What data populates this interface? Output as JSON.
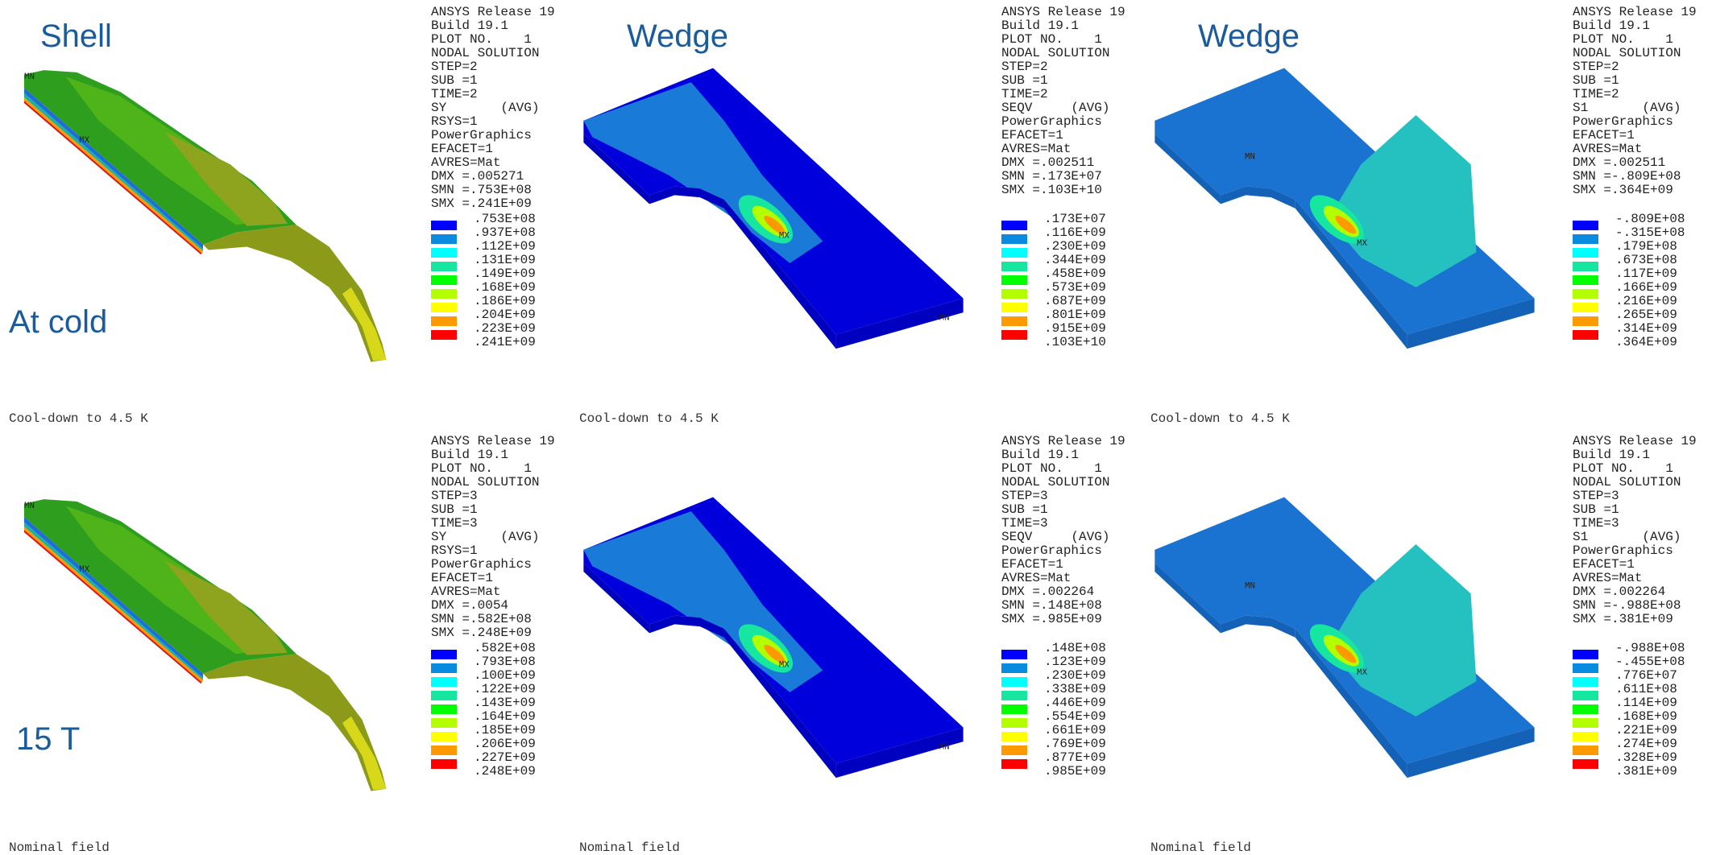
{
  "titles": [
    "Shell",
    "Wedge",
    "Wedge"
  ],
  "row_labels": [
    "At cold",
    "15 T"
  ],
  "panels": [
    {
      "info": [
        "ANSYS Release 19",
        "Build 19.1",
        "PLOT NO.    1",
        "NODAL SOLUTION",
        "STEP=2",
        "SUB =1",
        "TIME=2",
        "SY       (AVG)",
        "RSYS=1",
        "PowerGraphics",
        "EFACET=1",
        "AVRES=Mat",
        "DMX =.005271",
        "SMN =.753E+08",
        "SMX =.241E+09"
      ],
      "legend": [
        ".753E+08",
        ".937E+08",
        ".112E+09",
        ".131E+09",
        ".149E+09",
        ".168E+09",
        ".186E+09",
        ".204E+09",
        ".223E+09",
        ".241E+09"
      ],
      "mn": "MN",
      "mx": "MX",
      "caption": "Cool-down to 4.5 K"
    },
    {
      "info": [
        "ANSYS Release 19",
        "Build 19.1",
        "PLOT NO.    1",
        "NODAL SOLUTION",
        "STEP=2",
        "SUB =1",
        "TIME=2",
        "SEQV     (AVG)",
        "PowerGraphics",
        "EFACET=1",
        "AVRES=Mat",
        "DMX =.002511",
        "SMN =.173E+07",
        "SMX =.103E+10"
      ],
      "legend": [
        ".173E+07",
        ".116E+09",
        ".230E+09",
        ".344E+09",
        ".458E+09",
        ".573E+09",
        ".687E+09",
        ".801E+09",
        ".915E+09",
        ".103E+10"
      ],
      "mn": "MN",
      "mx": "MX",
      "caption": "Cool-down to 4.5 K"
    },
    {
      "info": [
        "ANSYS Release 19",
        "Build 19.1",
        "PLOT NO.    1",
        "NODAL SOLUTION",
        "STEP=2",
        "SUB =1",
        "TIME=2",
        "S1       (AVG)",
        "PowerGraphics",
        "EFACET=1",
        "AVRES=Mat",
        "DMX =.002511",
        "SMN =-.809E+08",
        "SMX =.364E+09"
      ],
      "legend": [
        "-.809E+08",
        "-.315E+08",
        ".179E+08",
        ".673E+08",
        ".117E+09",
        ".166E+09",
        ".216E+09",
        ".265E+09",
        ".314E+09",
        ".364E+09"
      ],
      "mn": "MN",
      "mx": "MX",
      "caption": "Cool-down to 4.5 K"
    },
    {
      "info": [
        "ANSYS Release 19",
        "Build 19.1",
        "PLOT NO.    1",
        "NODAL SOLUTION",
        "STEP=3",
        "SUB =1",
        "TIME=3",
        "SY       (AVG)",
        "RSYS=1",
        "PowerGraphics",
        "EFACET=1",
        "AVRES=Mat",
        "DMX =.0054",
        "SMN =.582E+08",
        "SMX =.248E+09"
      ],
      "legend": [
        ".582E+08",
        ".793E+08",
        ".100E+09",
        ".122E+09",
        ".143E+09",
        ".164E+09",
        ".185E+09",
        ".206E+09",
        ".227E+09",
        ".248E+09"
      ],
      "mn": "MN",
      "mx": "MX",
      "caption": "Nominal field"
    },
    {
      "info": [
        "ANSYS Release 19",
        "Build 19.1",
        "PLOT NO.    1",
        "NODAL SOLUTION",
        "STEP=3",
        "SUB =1",
        "TIME=3",
        "SEQV     (AVG)",
        "PowerGraphics",
        "EFACET=1",
        "AVRES=Mat",
        "DMX =.002264",
        "SMN =.148E+08",
        "SMX =.985E+09"
      ],
      "legend": [
        ".148E+08",
        ".123E+09",
        ".230E+09",
        ".338E+09",
        ".446E+09",
        ".554E+09",
        ".661E+09",
        ".769E+09",
        ".877E+09",
        ".985E+09"
      ],
      "mn": "MN",
      "mx": "MX",
      "caption": "Nominal field"
    },
    {
      "info": [
        "ANSYS Release 19",
        "Build 19.1",
        "PLOT NO.    1",
        "NODAL SOLUTION",
        "STEP=3",
        "SUB =1",
        "TIME=3",
        "S1       (AVG)",
        "PowerGraphics",
        "EFACET=1",
        "AVRES=Mat",
        "DMX =.002264",
        "SMN =-.988E+08",
        "SMX =.381E+09"
      ],
      "legend": [
        "-.988E+08",
        "-.455E+08",
        ".776E+07",
        ".611E+08",
        ".114E+09",
        ".168E+09",
        ".221E+09",
        ".274E+09",
        ".328E+09",
        ".381E+09"
      ],
      "mn": "MN",
      "mx": "MX",
      "caption": "Nominal field"
    }
  ]
}
